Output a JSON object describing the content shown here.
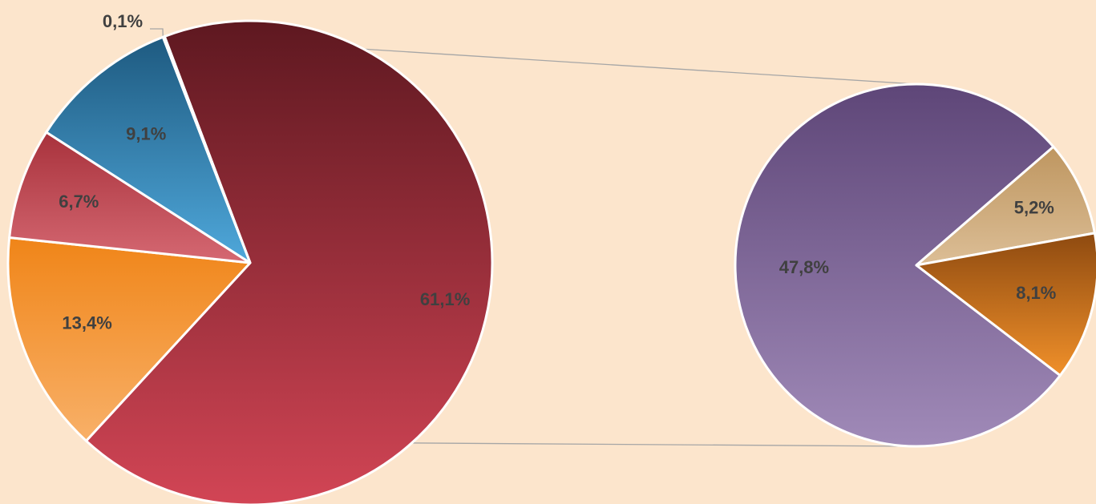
{
  "chart_data": {
    "type": "pie",
    "subtype": "pie-of-pie",
    "title": "",
    "legend": "none",
    "primary": {
      "slices": [
        {
          "value": 61.1,
          "label": "61,1%",
          "color_top": "#5E1820",
          "color_bottom": "#D24555"
        },
        {
          "value": 13.4,
          "label": "13,4%",
          "color_top": "#F08518",
          "color_bottom": "#F8B068"
        },
        {
          "value": 6.7,
          "label": "6,7%",
          "color_top": "#A8323C",
          "color_bottom": "#D56872"
        },
        {
          "value": 9.1,
          "label": "9,1%",
          "color_top": "#1E5A80",
          "color_bottom": "#4FA8DB"
        },
        {
          "value": 0.1,
          "label": "0,1%",
          "color_top": "#1E5A80",
          "color_bottom": "#4FA8DB"
        }
      ]
    },
    "secondary": {
      "slices": [
        {
          "value": 47.8,
          "label": "47,8%",
          "color_top": "#5E4678",
          "color_bottom": "#A08AB8"
        },
        {
          "value": 5.2,
          "label": "5,2%",
          "color_top": "#BE9660",
          "color_bottom": "#DCBE96"
        },
        {
          "value": 8.1,
          "label": "8,1%",
          "color_top": "#8E4A10",
          "color_bottom": "#F0902A"
        }
      ]
    },
    "colors": {
      "background": "#FCE5CC",
      "slice_border": "#FFFFFF",
      "connector": "#A6A6A6",
      "label": "#404040"
    }
  }
}
